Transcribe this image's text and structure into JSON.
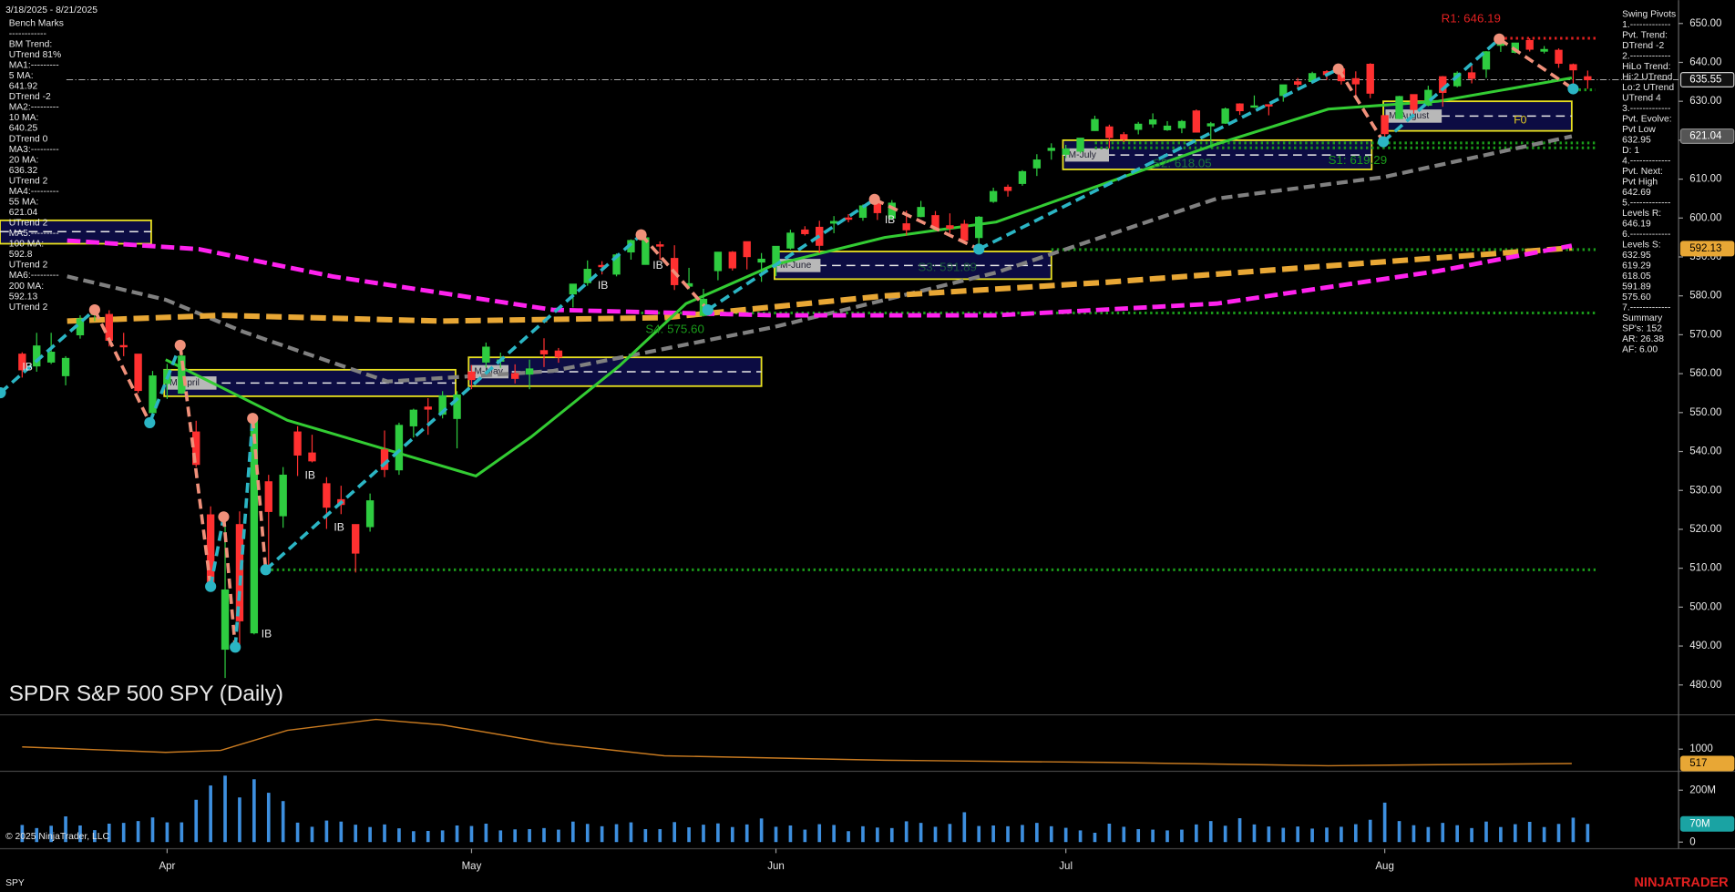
{
  "chart_data": {
    "type": "candlestick",
    "title": "SPDR S&P 500 SPY (Daily)",
    "date_range": "3/18/2025 - 8/21/2025",
    "copyright": "© 2025 NinjaTrader, LLC",
    "symbol": "SPY",
    "brand": "NINJATRADER",
    "xlim": [
      -1.53,
      114.27
    ],
    "xticks": [
      {
        "value": 10,
        "label": "Apr"
      },
      {
        "value": 31,
        "label": "May"
      },
      {
        "value": 52,
        "label": "Jun"
      },
      {
        "value": 72,
        "label": "Jul"
      },
      {
        "value": 94,
        "label": "Aug"
      }
    ],
    "ylim": [
      472.6,
      656
    ],
    "yticks": [
      {
        "value": 480,
        "label": "480.00"
      },
      {
        "value": 490,
        "label": "490.00"
      },
      {
        "value": 500,
        "label": "500.00"
      },
      {
        "value": 510,
        "label": "510.00"
      },
      {
        "value": 520,
        "label": "520.00"
      },
      {
        "value": 530,
        "label": "530.00"
      },
      {
        "value": 540,
        "label": "540.00"
      },
      {
        "value": 550,
        "label": "550.00"
      },
      {
        "value": 560,
        "label": "560.00"
      },
      {
        "value": 570,
        "label": "570.00"
      },
      {
        "value": 580,
        "label": "580.00"
      },
      {
        "value": 590,
        "label": "590.00"
      },
      {
        "value": 600,
        "label": "600.00"
      },
      {
        "value": 610,
        "label": "610.00"
      },
      {
        "value": 620,
        "label": "620.00"
      },
      {
        "value": 630,
        "label": "630.00"
      },
      {
        "value": 640,
        "label": "640.00"
      },
      {
        "value": 650,
        "label": "650.00"
      }
    ],
    "price_markers": [
      {
        "value": 635.55,
        "color": "#111111",
        "text_color": "#ffffff",
        "border": "#cccccc"
      },
      {
        "value": 621.04,
        "color": "#555555",
        "text_color": "#ffffff",
        "border": "#888888"
      },
      {
        "value": 592.13,
        "color": "#e8a735",
        "text_color": "#000000",
        "border": "#e8a735"
      }
    ],
    "up_color": "#2ecc40",
    "down_color": "#ff3030",
    "ohlc": [
      [
        565,
        565.5,
        559,
        561
      ],
      [
        562,
        570.5,
        560.5,
        567.1
      ],
      [
        563,
        570.5,
        562.5,
        565.5
      ],
      [
        559.5,
        564.5,
        557,
        563.9
      ],
      [
        570,
        575,
        569,
        574.1
      ],
      [
        575.3,
        576.4,
        573.5,
        575.5
      ],
      [
        575.2,
        576.3,
        567,
        568.6
      ],
      [
        567.2,
        570.5,
        564.5,
        567.1
      ],
      [
        565,
        565,
        555,
        555.7
      ],
      [
        550,
        560.7,
        546.9,
        559.4
      ],
      [
        557.5,
        562.5,
        553.5,
        560.97
      ],
      [
        555,
        567.4,
        554.8,
        564.5
      ],
      [
        545,
        547.9,
        536,
        536.7
      ],
      [
        523.7,
        525.9,
        505,
        505.3
      ],
      [
        489.2,
        523.2,
        481.8,
        504.4
      ],
      [
        521.2,
        524.6,
        489.7,
        496.5
      ],
      [
        493.4,
        548.6,
        493,
        548.6
      ],
      [
        532.2,
        534,
        509.6,
        524.6
      ],
      [
        523.5,
        536,
        520.4,
        533.9
      ],
      [
        545,
        546.5,
        533.7,
        539.1
      ],
      [
        539.6,
        544.3,
        537.2,
        537.6
      ],
      [
        531.7,
        533.4,
        520.1,
        525.7
      ],
      [
        527.6,
        531.2,
        523.9,
        526.4
      ],
      [
        521.2,
        521.3,
        508.9,
        513.9
      ],
      [
        520.7,
        529.2,
        519.4,
        527.3
      ],
      [
        540.4,
        545.4,
        533.4,
        535.4
      ],
      [
        535.3,
        547.4,
        534,
        546.7
      ],
      [
        546.6,
        551,
        543.6,
        550.6
      ],
      [
        551.4,
        553.7,
        544.3,
        550.9
      ],
      [
        549.6,
        555.5,
        548.5,
        554.3
      ],
      [
        548.5,
        555.5,
        540.8,
        554.5
      ],
      [
        560.4,
        562.2,
        556,
        558.5
      ],
      [
        563,
        568,
        561.6,
        566.8
      ],
      [
        563.5,
        565.4,
        561.5,
        563.5
      ],
      [
        560,
        562.4,
        557.5,
        558.8
      ],
      [
        559.9,
        563.6,
        556,
        561.2
      ],
      [
        565.9,
        569.1,
        561.7,
        565.1
      ],
      [
        565.8,
        566.6,
        562.8,
        564.3
      ],
      [
        580.5,
        583,
        577,
        582.99
      ],
      [
        583.4,
        589.1,
        582.6,
        586.8
      ],
      [
        587.8,
        588.9,
        585.5,
        587.6
      ],
      [
        585.6,
        590.9,
        585,
        590.5
      ],
      [
        591.3,
        594.5,
        589.3,
        594.2
      ],
      [
        588.1,
        595.5,
        588,
        594.9
      ],
      [
        593.1,
        594,
        589.3,
        592.8
      ],
      [
        589.6,
        593,
        581.5,
        582.9
      ],
      [
        582.5,
        587.2,
        581.7,
        583.1
      ],
      [
        575,
        581.8,
        574.7,
        579.1
      ],
      [
        586.5,
        591.3,
        584,
        591.2
      ],
      [
        591.2,
        591.5,
        586.5,
        587.2
      ],
      [
        593.9,
        593.9,
        586.8,
        590.1
      ],
      [
        588.7,
        591,
        583.6,
        589.4
      ],
      [
        587.8,
        592.8,
        585.1,
        592.7
      ],
      [
        592.3,
        597,
        591.9,
        596.1
      ],
      [
        596.9,
        597.9,
        595.5,
        596
      ],
      [
        597.6,
        599.3,
        591,
        593
      ],
      [
        598.7,
        600.5,
        596.1,
        599.1
      ],
      [
        600,
        601,
        598.9,
        599.7
      ],
      [
        600.2,
        603.5,
        599.3,
        603.1
      ],
      [
        604.2,
        605,
        599.5,
        601.4
      ],
      [
        600,
        604.6,
        599.5,
        603.8
      ],
      [
        598.5,
        601.9,
        595.5,
        597
      ],
      [
        600.4,
        604.4,
        600.2,
        602.7
      ],
      [
        600.6,
        601.8,
        596.8,
        597.5
      ],
      [
        598,
        601.2,
        596.1,
        597.4
      ],
      [
        598.4,
        599.5,
        593.4,
        594.3
      ],
      [
        595,
        600.5,
        591.9,
        600.2
      ],
      [
        604.3,
        607.8,
        603.9,
        606.8
      ],
      [
        607.9,
        608.6,
        605.5,
        607.1
      ],
      [
        608.9,
        612.3,
        608.3,
        611.9
      ],
      [
        612.9,
        616.4,
        610.8,
        614.9
      ],
      [
        617.4,
        619.2,
        615,
        617.9
      ],
      [
        616.4,
        618.8,
        615.4,
        617.7
      ],
      [
        617.2,
        620.5,
        616.6,
        620.5
      ],
      [
        622.5,
        626.3,
        622.4,
        625.3
      ],
      [
        623.4,
        624,
        617.9,
        620.7
      ],
      [
        621.4,
        622.1,
        619.5,
        620.3
      ],
      [
        622.8,
        624.7,
        621.5,
        624.1
      ],
      [
        624.2,
        626.9,
        623.2,
        625.2
      ],
      [
        622.7,
        624.9,
        622.4,
        623.6
      ],
      [
        623.2,
        625.2,
        621.8,
        624.8
      ],
      [
        627.5,
        627.9,
        622,
        622.1
      ],
      [
        623.7,
        624.7,
        618,
        624.2
      ],
      [
        624.4,
        628.4,
        624.2,
        628
      ],
      [
        629.3,
        629.5,
        626.5,
        627.6
      ],
      [
        628.8,
        631.5,
        628.3,
        628.8
      ],
      [
        629.1,
        629.1,
        626.4,
        628.9
      ],
      [
        631.5,
        634.2,
        629.9,
        634.2
      ],
      [
        635,
        636,
        633.1,
        634.4
      ],
      [
        635.1,
        637.6,
        634.9,
        637.1
      ],
      [
        637.6,
        638,
        635.5,
        636.9
      ],
      [
        638.3,
        638.7,
        634.3,
        635.3
      ],
      [
        635.8,
        637.7,
        631.5,
        634.5
      ],
      [
        639.5,
        639.8,
        630.8,
        632.1
      ],
      [
        626.3,
        626.3,
        619.3,
        621.7
      ],
      [
        625.6,
        631.4,
        625.4,
        631.2
      ],
      [
        631.7,
        631.7,
        626.8,
        627.9
      ],
      [
        629,
        634,
        628.7,
        632.8
      ],
      [
        636.3,
        636.5,
        628.6,
        632.3
      ],
      [
        634,
        637.7,
        633.6,
        637.2
      ],
      [
        637.3,
        639.2,
        634.6,
        635.9
      ],
      [
        638.3,
        642.9,
        636,
        642.7
      ],
      [
        644.4,
        645.3,
        642.7,
        644.9
      ],
      [
        642.6,
        645,
        642.3,
        644.95
      ],
      [
        645.6,
        646.2,
        642.8,
        643.4
      ],
      [
        642.9,
        644.2,
        642.3,
        643.3
      ],
      [
        643.1,
        643.6,
        638.6,
        639.8
      ],
      [
        639.4,
        639.7,
        632.9,
        638.1
      ],
      [
        636.3,
        637.9,
        633.2,
        635.55
      ]
    ],
    "overlays": [
      {
        "color": "#808080",
        "dash": "10 5",
        "width": 3.5,
        "x": [
          3.1,
          9.9,
          15.3,
          25.2,
          36.6,
          51.9,
          67.2,
          82.4,
          93.9,
          106.9
        ],
        "values": [
          585,
          579,
          570.7,
          558,
          560.7,
          572,
          586,
          605,
          610.5,
          621
        ]
      },
      {
        "color": "#e8a735",
        "dash": "14 6",
        "width": 5,
        "x": [
          3.1,
          13.7,
          29,
          44.3,
          59.5,
          74.8,
          90.1,
          106.9
        ],
        "values": [
          573.5,
          575,
          573.5,
          574.4,
          580,
          583.5,
          587.7,
          592.3
        ]
      },
      {
        "color": "#ff22ee",
        "dash": "12 5",
        "width": 4,
        "x": [
          3.1,
          12.2,
          21.4,
          36.6,
          51.9,
          67.2,
          82.4,
          97.7,
          106.9
        ],
        "values": [
          594.2,
          592,
          585,
          576.4,
          575,
          575,
          578,
          586.4,
          592.9
        ]
      },
      {
        "color": "#33cc33",
        "dash": "none",
        "width": 2.5,
        "x": [
          9.9,
          18.3,
          31.3,
          35.1,
          41.2,
          45.8,
          51.9,
          59.5,
          67.2,
          74.8,
          82.4,
          90.1,
          97.7,
          106.9
        ],
        "values": [
          563.6,
          548,
          533.7,
          543.7,
          562,
          578,
          588,
          595,
          599,
          609,
          619,
          628,
          630,
          636
        ]
      }
    ],
    "swing": {
      "up_color": "#2bb5c4",
      "down_color": "#f0907a",
      "x": [
        -1.5,
        5,
        8.8,
        10.9,
        13,
        13.9,
        14.7,
        15.9,
        16.8,
        42.7,
        47.3,
        58.8,
        66,
        90.8,
        93.9,
        101.9,
        107
      ],
      "values": [
        555.1,
        576.4,
        547.4,
        567.3,
        505.3,
        523.2,
        489.7,
        548.5,
        509.6,
        595.7,
        576.4,
        604.8,
        592,
        638.3,
        619.6,
        646,
        633.2
      ]
    },
    "levels": [
      {
        "value": 646.19,
        "from": 101.9,
        "color": "#e02020"
      },
      {
        "value": 632.95,
        "from": 107,
        "color": "#1a9a1a"
      },
      {
        "value": 619.29,
        "from": 74,
        "color": "#1a9a1a"
      },
      {
        "value": 618.05,
        "from": 74,
        "color": "#1a9a1a"
      },
      {
        "value": 591.89,
        "from": 71,
        "color": "#1a9a1a"
      },
      {
        "value": 575.6,
        "from": 42.7,
        "color": "#1a9a1a"
      },
      {
        "value": 509.6,
        "from": 16.8,
        "color": "#1a9a1a"
      }
    ],
    "month_boxes": [
      {
        "x0": -1.53,
        "x1": 8.9,
        "high": 599.4,
        "low": 593.4,
        "mid": 596.5
      },
      {
        "label": "M-April",
        "x0": 9.8,
        "x1": 29.9,
        "high": 561,
        "low": 554.2,
        "mid": 557.6
      },
      {
        "label": "M-May",
        "x0": 30.8,
        "x1": 51,
        "high": 564.2,
        "low": 556.8,
        "mid": 560.5
      },
      {
        "label": "M-June",
        "x0": 51.9,
        "x1": 71,
        "high": 591.4,
        "low": 584.3,
        "mid": 587.8
      },
      {
        "label": "M-July",
        "x0": 71.8,
        "x1": 93.1,
        "high": 620,
        "low": 612.5,
        "mid": 616.2
      },
      {
        "label": "M-August",
        "x0": 93.9,
        "x1": 106.9,
        "high": 630,
        "low": 622.4,
        "mid": 626.2
      }
    ],
    "annotations": [
      {
        "text": "R1: 646.19",
        "x": 97.9,
        "y": 651.1,
        "color": "#e02020",
        "size": 11
      },
      {
        "text": "S1: 619.29",
        "x": 90.1,
        "y": 614.7,
        "color": "#1a9a1a",
        "size": 11
      },
      {
        "text": "S2: 618.05",
        "x": 78,
        "y": 613.9,
        "color": "#1a7a3a",
        "size": 11
      },
      {
        "text": "S3: 591.89",
        "x": 61.8,
        "y": 587.2,
        "color": "#1a5a3a",
        "size": 11
      },
      {
        "text": "S4: 575.60",
        "x": 43,
        "y": 571.3,
        "color": "#1a9a1a",
        "size": 11
      },
      {
        "text": "F0",
        "x": 102.9,
        "y": 625,
        "color": "#e8d020",
        "size": 10
      },
      {
        "text": "IB",
        "x": 0,
        "y": 561.6,
        "color": "#e8e8e8",
        "size": 10
      },
      {
        "text": "IB",
        "x": 39.7,
        "y": 582.6,
        "color": "#e8e8e8",
        "size": 10
      },
      {
        "text": "IB",
        "x": 43.5,
        "y": 587.7,
        "color": "#e8e8e8",
        "size": 10
      },
      {
        "text": "IB",
        "x": 59.5,
        "y": 599.4,
        "color": "#e8e8e8",
        "size": 10
      },
      {
        "text": "IB",
        "x": 19.5,
        "y": 533.7,
        "color": "#e8e8e8",
        "size": 10
      },
      {
        "text": "IB",
        "x": 21.5,
        "y": 520.4,
        "color": "#e8e8e8",
        "size": 10
      },
      {
        "text": "IB",
        "x": 16.5,
        "y": 493,
        "color": "#e8e8e8",
        "size": 10
      }
    ],
    "bench_marks": [
      "Bench Marks",
      "------------",
      "BM Trend:",
      "UTrend 81%",
      "MA1:---------",
      "5 MA:",
      "641.92",
      "DTrend -2",
      "MA2:---------",
      "10 MA:",
      "640.25",
      "DTrend 0",
      "MA3:---------",
      "20 MA:",
      "636.32",
      "UTrend 2",
      "MA4:---------",
      "55 MA:",
      "621.04",
      "UTrend 2",
      "MA5:---------",
      "100 MA:",
      "592.8",
      "UTrend 2",
      "MA6:---------",
      "200 MA:",
      "592.13",
      "UTrend 2"
    ],
    "swing_pivots": [
      "Swing Pivots",
      "1.-------------",
      "Pvt. Trend:",
      "DTrend -2",
      "2.-------------",
      "HiLo Trend:",
      "Hi:2 UTrend",
      "Lo:2 UTrend",
      "UTrend 4",
      "3.-------------",
      "Pvt. Evolve:",
      "Pvt Low",
      "632.95",
      "D: 1",
      "4.-------------",
      "Pvt. Next:",
      "Pvt High",
      "642.69",
      "5.-------------",
      "Levels R:",
      "646.19",
      "6.-------------",
      "Levels S:",
      "632.95",
      "619.29",
      "618.05",
      "591.89",
      "575.60",
      "7.-------------",
      "Summary",
      "SP's: 152",
      "AR: 26.38",
      "AF: 6.00"
    ],
    "indicator": {
      "color": "#c87a20",
      "ylim": [
        256,
        2115
      ],
      "yticks": [
        1000
      ],
      "x": [
        0,
        9.9,
        13.7,
        18.3,
        24.4,
        29,
        36.6,
        44.3,
        59.5,
        74.8,
        90.1,
        97.7,
        106.9
      ],
      "values": [
        1074,
        890,
        960,
        1630,
        2000,
        1815,
        1185,
        776,
        628,
        554,
        442,
        480,
        517
      ],
      "markers": [
        {
          "value": 517,
          "color": "#e8a735",
          "text_color": "#000000"
        }
      ]
    },
    "volume": {
      "color": "#3d8fdf",
      "ylim": [
        -17,
        260
      ],
      "yticks": [
        0,
        {
          "value": 200,
          "label": "200M"
        }
      ],
      "markers": [
        {
          "value": 70,
          "label": "70M",
          "color": "#1aa3a3",
          "text_color": "#ffffff"
        }
      ],
      "values": [
        66,
        54,
        63,
        99,
        64,
        46,
        71,
        74,
        81,
        95,
        76,
        76,
        163,
        218,
        256,
        172,
        242,
        190,
        158,
        75,
        59,
        83,
        79,
        67,
        58,
        68,
        53,
        42,
        43,
        45,
        64,
        62,
        71,
        45,
        49,
        50,
        54,
        48,
        79,
        70,
        61,
        69,
        76,
        50,
        50,
        77,
        57,
        67,
        72,
        58,
        68,
        91,
        59,
        64,
        48,
        69,
        66,
        42,
        61,
        56,
        54,
        80,
        74,
        59,
        70,
        115,
        62,
        64,
        61,
        66,
        74,
        61,
        55,
        45,
        36,
        71,
        59,
        50,
        48,
        45,
        48,
        68,
        81,
        63,
        92,
        68,
        60,
        55,
        60,
        52,
        56,
        59,
        69,
        86,
        152,
        81,
        65,
        58,
        74,
        65,
        54,
        79,
        58,
        69,
        78,
        58,
        70,
        94,
        70
      ]
    }
  }
}
